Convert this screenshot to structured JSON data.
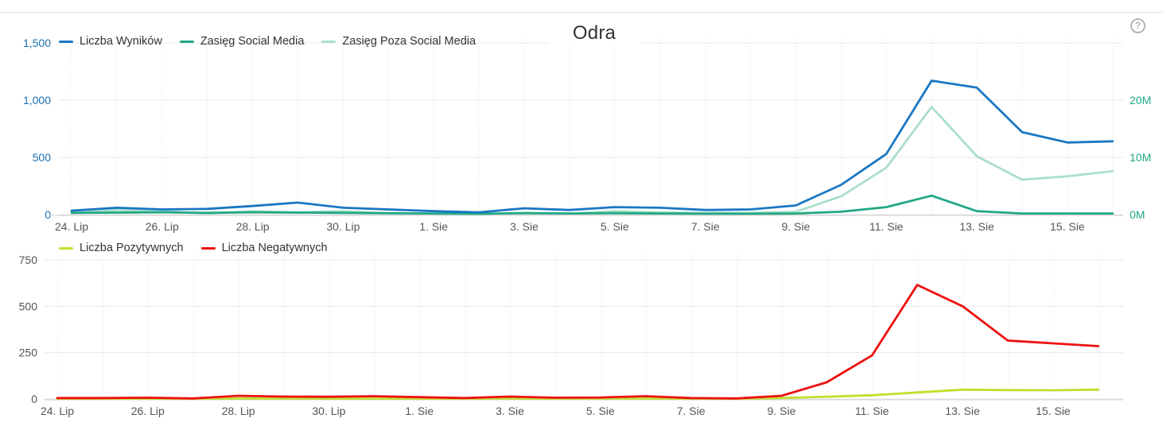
{
  "title": "Odra",
  "help_icon": "help-icon",
  "help_glyph": "?",
  "colors": {
    "wyniki": "#1a77c4",
    "social": "#21a884",
    "poza": "#a9dfcb",
    "pozytywne": "#bfe02e",
    "negatywne": "#ee1111",
    "left_axis_text": "#1a6fb0",
    "right_axis_text": "#21a884",
    "neutral_axis_text": "#555555",
    "grid": "#e8e8e8"
  },
  "legend_top": [
    {
      "label": "Liczba Wyników",
      "color": "#1a77c4"
    },
    {
      "label": "Zasięg Social Media",
      "color": "#21a884"
    },
    {
      "label": "Zasięg Poza Social Media",
      "color": "#a9dfcb"
    }
  ],
  "legend_bottom": [
    {
      "label": "Liczba Pozytywnych",
      "color": "#bfe02e"
    },
    {
      "label": "Liczba Negatywnych",
      "color": "#ee1111"
    }
  ],
  "chart_data": [
    {
      "type": "line",
      "title": "Odra",
      "x": [
        "24. Lip",
        "25. Lip",
        "26. Lip",
        "27. Lip",
        "28. Lip",
        "29. Lip",
        "30. Lip",
        "31. Lip",
        "1. Sie",
        "2. Sie",
        "3. Sie",
        "4. Sie",
        "5. Sie",
        "6. Sie",
        "7. Sie",
        "8. Sie",
        "9. Sie",
        "10. Sie",
        "11. Sie",
        "12. Sie",
        "13. Sie",
        "14. Sie",
        "15. Sie",
        "16. Sie"
      ],
      "xtick_labels": [
        "24. Lip",
        "26. Lip",
        "28. Lip",
        "30. Lip",
        "1. Sie",
        "3. Sie",
        "5. Sie",
        "7. Sie",
        "9. Sie",
        "11. Sie",
        "13. Sie",
        "15. Sie"
      ],
      "y_left": {
        "ylim": [
          0,
          1500
        ],
        "ticks": [
          "0",
          "500",
          "1,000",
          "1,500"
        ],
        "tick_values": [
          0,
          500,
          1000,
          1500
        ]
      },
      "y_right": {
        "ylim": [
          0,
          30000000
        ],
        "ticks": [
          "0M",
          "10M",
          "20M"
        ],
        "tick_values": [
          0,
          10000000,
          20000000
        ]
      },
      "grid": true,
      "legend_position": "top-left",
      "series": [
        {
          "name": "Liczba Wyników",
          "axis": "left",
          "values": [
            35,
            60,
            45,
            50,
            75,
            105,
            60,
            45,
            30,
            20,
            55,
            40,
            65,
            60,
            40,
            45,
            80,
            260,
            530,
            1170,
            1110,
            720,
            630,
            640
          ]
        },
        {
          "name": "Zasięg Social Media",
          "axis": "right",
          "values": [
            300000,
            350000,
            400000,
            300000,
            400000,
            350000,
            300000,
            250000,
            200000,
            150000,
            250000,
            200000,
            250000,
            200000,
            150000,
            150000,
            200000,
            500000,
            1300000,
            3300000,
            600000,
            200000,
            200000,
            200000
          ]
        },
        {
          "name": "Zasięg Poza Social Media",
          "axis": "right",
          "values": [
            300000,
            800000,
            600000,
            200000,
            600000,
            400000,
            600000,
            200000,
            150000,
            100000,
            300000,
            200000,
            600000,
            400000,
            300000,
            300000,
            500000,
            3200000,
            8200000,
            18800000,
            10200000,
            6100000,
            6700000,
            7600000
          ]
        }
      ]
    },
    {
      "type": "line",
      "x": [
        "24. Lip",
        "25. Lip",
        "26. Lip",
        "27. Lip",
        "28. Lip",
        "29. Lip",
        "30. Lip",
        "31. Lip",
        "1. Sie",
        "2. Sie",
        "3. Sie",
        "4. Sie",
        "5. Sie",
        "6. Sie",
        "7. Sie",
        "8. Sie",
        "9. Sie",
        "10. Sie",
        "11. Sie",
        "12. Sie",
        "13. Sie",
        "14. Sie",
        "15. Sie",
        "16. Sie"
      ],
      "xtick_labels": [
        "24. Lip",
        "26. Lip",
        "28. Lip",
        "30. Lip",
        "1. Sie",
        "3. Sie",
        "5. Sie",
        "7. Sie",
        "9. Sie",
        "11. Sie",
        "13. Sie",
        "15. Sie"
      ],
      "y": {
        "ylim": [
          0,
          750
        ],
        "ticks": [
          "0",
          "250",
          "500",
          "750"
        ],
        "tick_values": [
          0,
          250,
          500,
          750
        ]
      },
      "grid": true,
      "legend_position": "top-left",
      "series": [
        {
          "name": "Liczba Pozytywnych",
          "values": [
            2,
            2,
            2,
            2,
            3,
            3,
            2,
            2,
            2,
            2,
            3,
            2,
            3,
            3,
            2,
            2,
            5,
            12,
            20,
            35,
            50,
            48,
            47,
            50
          ]
        },
        {
          "name": "Liczba Negatywnych",
          "values": [
            5,
            5,
            7,
            3,
            17,
            13,
            12,
            15,
            10,
            5,
            13,
            7,
            8,
            15,
            5,
            3,
            17,
            90,
            235,
            615,
            500,
            315,
            300,
            285
          ]
        }
      ]
    }
  ]
}
